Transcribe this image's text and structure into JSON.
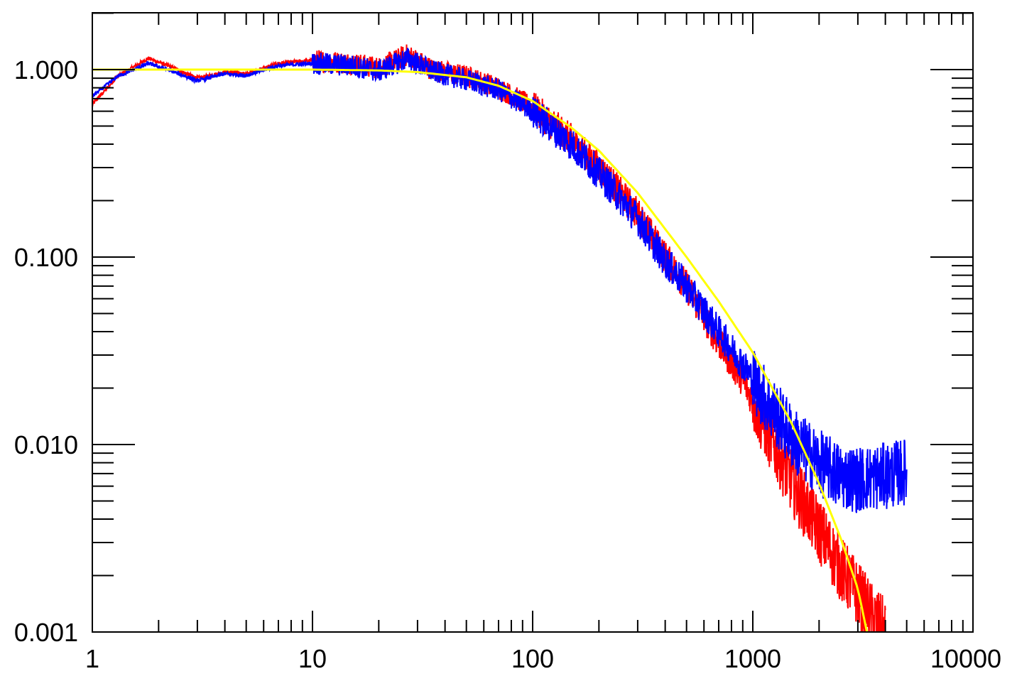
{
  "chart_data": {
    "type": "line",
    "title": "",
    "xlabel": "",
    "ylabel": "",
    "xscale": "log",
    "yscale": "log",
    "xlim": [
      1,
      10000
    ],
    "ylim": [
      0.001,
      2
    ],
    "x_tick_labels": [
      "1",
      "10",
      "100",
      "1000",
      "10000"
    ],
    "x_tick_values": [
      1,
      10,
      100,
      1000,
      10000
    ],
    "y_tick_labels": [
      "0.001",
      "0.010",
      "0.100",
      "1.000"
    ],
    "y_tick_values": [
      0.001,
      0.01,
      0.1,
      1.0
    ],
    "grid": false,
    "legend": "none",
    "colors": {
      "red": "#ff0000",
      "blue": "#0000ff",
      "yellow": "#ffff00"
    },
    "series": [
      {
        "color": "#ff0000",
        "x": [
          1,
          1.3,
          1.8,
          2.2,
          3,
          4,
          5,
          7,
          10,
          15,
          20,
          27,
          35,
          50,
          70,
          100,
          150,
          200,
          300,
          400,
          500,
          700,
          900,
          1200,
          1600,
          2000,
          2500,
          3000,
          3500,
          4000
        ],
        "y": [
          0.65,
          0.92,
          1.15,
          1.05,
          0.9,
          0.97,
          0.95,
          1.08,
          1.12,
          1.08,
          1.02,
          1.2,
          1.0,
          0.92,
          0.8,
          0.63,
          0.42,
          0.3,
          0.17,
          0.1,
          0.07,
          0.035,
          0.022,
          0.011,
          0.0055,
          0.0035,
          0.0022,
          0.0016,
          0.0012,
          0.001
        ]
      },
      {
        "color": "#0000ff",
        "x": [
          1,
          1.3,
          1.8,
          2.2,
          3,
          4,
          5,
          7,
          10,
          15,
          20,
          27,
          35,
          50,
          70,
          100,
          150,
          200,
          300,
          400,
          500,
          700,
          900,
          1200,
          1600,
          2000,
          2500,
          3000,
          4000,
          5000
        ],
        "y": [
          0.72,
          0.92,
          1.08,
          1.0,
          0.87,
          0.95,
          0.93,
          1.05,
          1.08,
          1.05,
          0.98,
          1.15,
          0.98,
          0.88,
          0.78,
          0.6,
          0.4,
          0.28,
          0.16,
          0.095,
          0.07,
          0.04,
          0.027,
          0.016,
          0.01,
          0.008,
          0.0068,
          0.0065,
          0.0068,
          0.0072
        ]
      },
      {
        "color": "#ffff00",
        "x": [
          1,
          2,
          5,
          10,
          20,
          30,
          50,
          70,
          100,
          150,
          200,
          300,
          500,
          700,
          1000,
          1500,
          2000,
          2500,
          3000,
          3300
        ],
        "y": [
          1.0,
          1.0,
          1.0,
          1.0,
          0.99,
          0.97,
          0.91,
          0.82,
          0.68,
          0.49,
          0.37,
          0.22,
          0.1,
          0.058,
          0.031,
          0.013,
          0.0062,
          0.0032,
          0.0017,
          0.001
        ]
      }
    ]
  }
}
